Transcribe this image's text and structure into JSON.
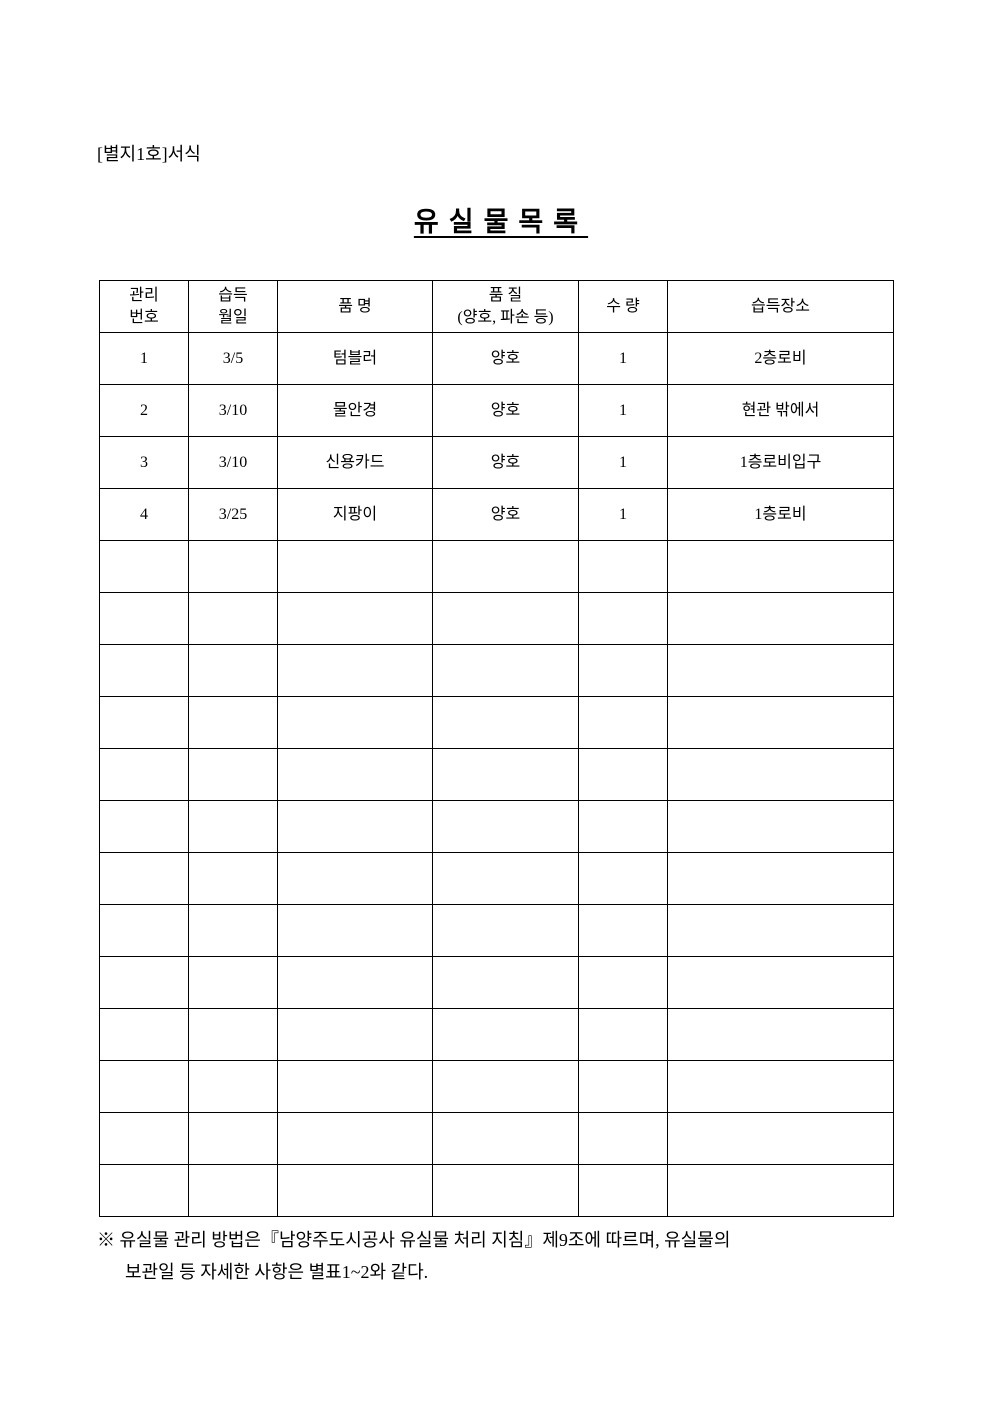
{
  "form_label": "[별지1호]서식",
  "title": "유실물목록",
  "table": {
    "headers": [
      [
        "관리",
        "번호"
      ],
      [
        "습득",
        "월일"
      ],
      [
        "품 명"
      ],
      [
        "품 질",
        "(양호, 파손 등)"
      ],
      [
        "수 량"
      ],
      [
        "습득장소"
      ]
    ],
    "rows": [
      [
        "1",
        "3/5",
        "텀블러",
        "양호",
        "1",
        "2층로비"
      ],
      [
        "2",
        "3/10",
        "물안경",
        "양호",
        "1",
        "현관 밖에서"
      ],
      [
        "3",
        "3/10",
        "신용카드",
        "양호",
        "1",
        "1층로비입구"
      ],
      [
        "4",
        "3/25",
        "지팡이",
        "양호",
        "1",
        "1층로비"
      ]
    ],
    "empty_rows": 13
  },
  "note": {
    "line1": "※ 유실물 관리 방법은『남양주도시공사 유실물 처리 지침』제9조에 따르며, 유실물의",
    "line2": "보관일 등 자세한 사항은 별표1~2와 같다."
  }
}
